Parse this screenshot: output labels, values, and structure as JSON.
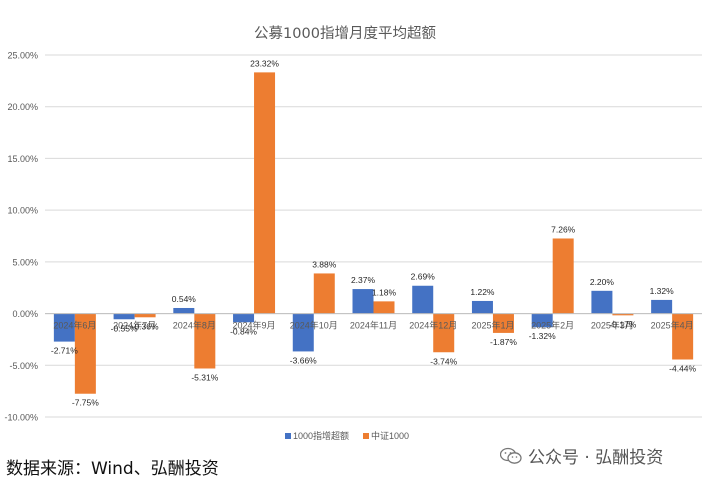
{
  "chart_data": {
    "type": "bar",
    "title": "公募1000指增月度平均超额",
    "categories": [
      "2024年6月",
      "2024年7月",
      "2024年8月",
      "2024年9月",
      "2024年10月",
      "2024年11月",
      "2024年12月",
      "2025年1月",
      "2025年2月",
      "2025年3月",
      "2025年4月"
    ],
    "series": [
      {
        "name": "1000指增超额",
        "color": "#4472C4",
        "values": [
          -2.71,
          -0.55,
          0.54,
          -0.84,
          -3.66,
          2.37,
          2.69,
          1.22,
          -1.32,
          2.2,
          1.32
        ],
        "labels": [
          "-2.71%",
          "-0.55%",
          "0.54%",
          "-0.84%",
          "-3.66%",
          "2.37%",
          "2.69%",
          "1.22%",
          "-1.32%",
          "2.20%",
          "1.32%"
        ]
      },
      {
        "name": "中证1000",
        "color": "#ED7D31",
        "values": [
          -7.75,
          -0.36,
          -5.31,
          23.32,
          3.88,
          1.18,
          -3.74,
          -1.87,
          7.26,
          -0.17,
          -4.44
        ],
        "labels": [
          "-7.75%",
          "-0.36%",
          "-5.31%",
          "23.32%",
          "3.88%",
          "1.18%",
          "-3.74%",
          "-1.87%",
          "7.26%",
          "-0.17%",
          "-4.44%"
        ]
      }
    ],
    "ylim": [
      -10,
      25
    ],
    "yticks": [
      "25.00%",
      "20.00%",
      "15.00%",
      "10.00%",
      "5.00%",
      "0.00%",
      "-5.00%",
      "-10.00%"
    ],
    "ytick_values": [
      25,
      20,
      15,
      10,
      5,
      0,
      -5,
      -10
    ],
    "grid": true,
    "legend": "bottom",
    "xlabel": "",
    "ylabel": ""
  },
  "footer": {
    "source": "数据来源：Wind、弘酬投资",
    "watermark": "公众号 · 弘酬投资",
    "watermark_icon": "wechat-icon"
  }
}
